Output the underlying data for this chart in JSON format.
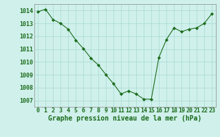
{
  "x": [
    0,
    1,
    2,
    3,
    4,
    5,
    6,
    7,
    8,
    9,
    10,
    11,
    12,
    13,
    14,
    15,
    16,
    17,
    18,
    19,
    20,
    21,
    22,
    23
  ],
  "y": [
    1013.9,
    1014.1,
    1013.3,
    1013.0,
    1012.55,
    1011.7,
    1011.05,
    1010.3,
    1009.75,
    1009.0,
    1008.3,
    1007.5,
    1007.75,
    1007.5,
    1007.1,
    1007.1,
    1010.35,
    1011.75,
    1012.65,
    1012.35,
    1012.55,
    1012.65,
    1013.0,
    1013.75
  ],
  "line_color": "#1a6b1a",
  "marker_color": "#1a6b1a",
  "bg_color": "#cff0eb",
  "grid_color": "#a8d8d0",
  "xlabel": "Graphe pression niveau de la mer (hPa)",
  "xlabel_color": "#1a6b1a",
  "tick_color": "#1a6b1a",
  "spine_color": "#888888",
  "ylim": [
    1006.5,
    1014.5
  ],
  "yticks": [
    1007,
    1008,
    1009,
    1010,
    1011,
    1012,
    1013,
    1014
  ],
  "xticks": [
    0,
    1,
    2,
    3,
    4,
    5,
    6,
    7,
    8,
    9,
    10,
    11,
    12,
    13,
    14,
    15,
    16,
    17,
    18,
    19,
    20,
    21,
    22,
    23
  ],
  "xlim": [
    -0.5,
    23.5
  ],
  "font_size_xlabel": 7,
  "font_size_ticks": 6,
  "linewidth": 0.8,
  "markersize": 2.2
}
